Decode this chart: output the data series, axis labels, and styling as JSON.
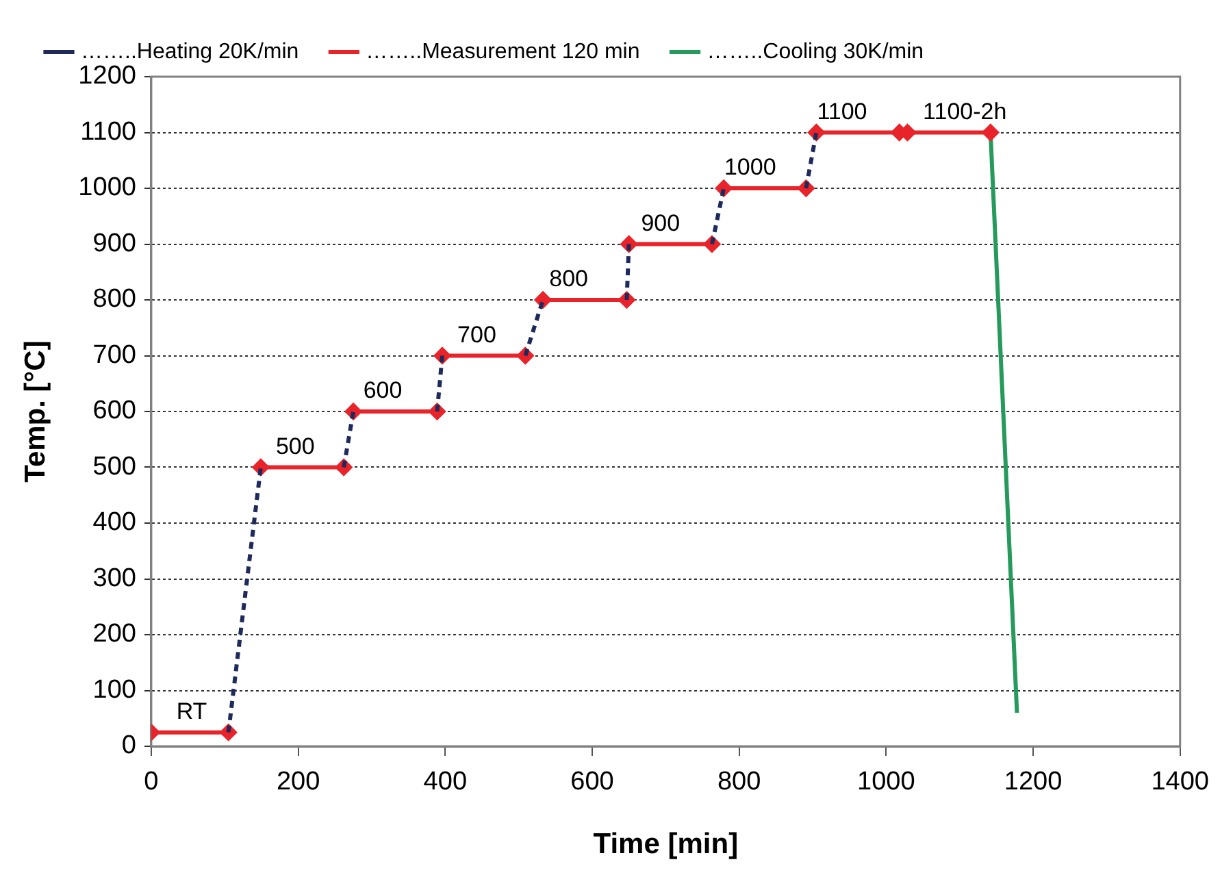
{
  "chart_data": {
    "type": "line",
    "xlabel": "Time [min]",
    "ylabel": "Temp. [°C]",
    "xlim": [
      0,
      1400
    ],
    "xticks": [
      0,
      200,
      400,
      600,
      800,
      1000,
      1200,
      1400
    ],
    "ylim": [
      0,
      1200
    ],
    "yticks": [
      0,
      100,
      200,
      300,
      400,
      500,
      600,
      700,
      800,
      900,
      1000,
      1100,
      1200
    ],
    "grid": "y",
    "legend": "top",
    "series": [
      {
        "name": "……..Heating 20K/min",
        "color": "#1f2a5c",
        "line_style": "dashed",
        "marker": "none",
        "x": [
          105,
          149,
          150,
          262,
          275,
          276,
          389,
          396,
          397,
          509,
          533,
          534,
          647,
          650,
          651,
          763,
          779,
          780,
          891,
          905
        ],
        "values": [
          25,
          500,
          null,
          500,
          600,
          null,
          600,
          700,
          null,
          700,
          800,
          null,
          800,
          900,
          null,
          900,
          1000,
          null,
          1000,
          1100
        ]
      },
      {
        "name": "……..Measurement 120 min",
        "color": "#e8232a",
        "line_style": "solid",
        "marker": "diamond",
        "x": [
          0,
          105,
          106,
          149,
          262,
          263,
          275,
          389,
          390,
          396,
          509,
          510,
          533,
          647,
          648,
          650,
          763,
          764,
          779,
          891,
          892,
          905,
          1018,
          1019,
          1029,
          1142
        ],
        "values": [
          25,
          25,
          null,
          500,
          500,
          null,
          600,
          600,
          null,
          700,
          700,
          null,
          800,
          800,
          null,
          900,
          900,
          null,
          1000,
          1000,
          null,
          1100,
          1100,
          null,
          1100,
          1100
        ]
      },
      {
        "name": "……..Cooling 30K/min",
        "color": "#259a5c",
        "line_style": "solid",
        "marker": "none",
        "x": [
          1142,
          1178
        ],
        "values": [
          1100,
          60
        ]
      }
    ],
    "annotations": [
      {
        "text": "RT",
        "x": 55,
        "y": 25
      },
      {
        "text": "500",
        "x": 196,
        "y": 500
      },
      {
        "text": "600",
        "x": 315,
        "y": 600
      },
      {
        "text": "700",
        "x": 443,
        "y": 700
      },
      {
        "text": "800",
        "x": 568,
        "y": 800
      },
      {
        "text": "900",
        "x": 693,
        "y": 900
      },
      {
        "text": "1000",
        "x": 815,
        "y": 1000
      },
      {
        "text": "1100",
        "x": 940,
        "y": 1100
      },
      {
        "text": "1100-2h",
        "x": 1107,
        "y": 1100
      }
    ]
  }
}
